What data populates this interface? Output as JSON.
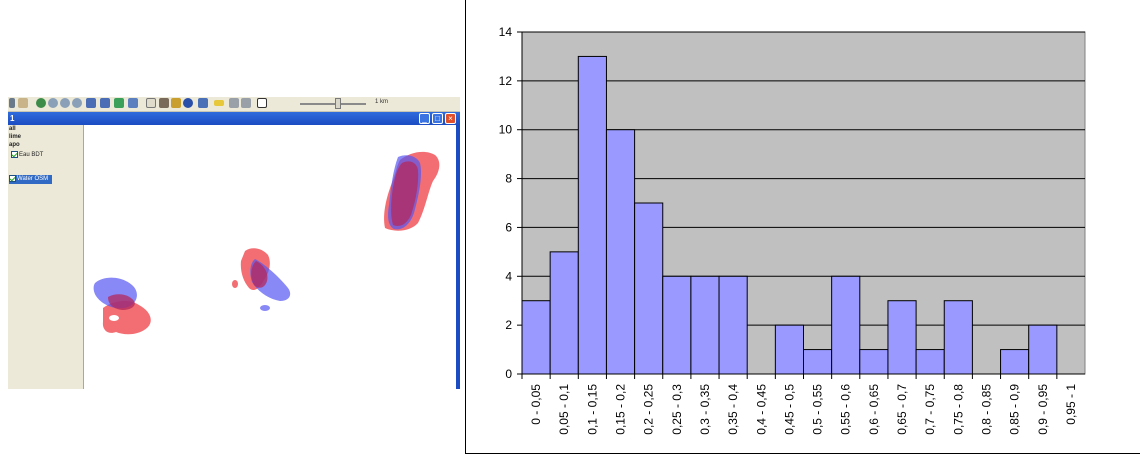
{
  "gis_window": {
    "scale_label": "1 km",
    "title": "1",
    "sidebar_labels": [
      "all",
      "lime",
      "apo"
    ],
    "layers": [
      {
        "label": "Eau BDT",
        "checked": true,
        "selected": false
      },
      {
        "label": "Water OSM",
        "checked": true,
        "selected": true
      }
    ],
    "colors": {
      "layer_eau_bdt": "#f0555b",
      "layer_water_osm": "#5656f2",
      "overlap": "#b3285c"
    },
    "toolbar_icons": [
      "select-icon",
      "pan-icon",
      "globe-icon",
      "zoom-in-icon",
      "zoom-out-icon",
      "zoom-extent-icon",
      "back-arrow-icon",
      "forward-arrow-icon",
      "layers-icon",
      "grid-icon",
      "pointer-icon",
      "tools-icon",
      "box-icon",
      "info-icon",
      "edit-icon",
      "ruler-icon",
      "undo-icon",
      "redo-icon",
      "frame-icon"
    ]
  },
  "chart_data": {
    "type": "bar",
    "categories": [
      "0 - 0,05",
      "0,05 - 0,1",
      "0,1 - 0,15",
      "0,15 - 0,2",
      "0,2 - 0,25",
      "0,25 - 0,3",
      "0,3 - 0,35",
      "0,35 - 0,4",
      "0,4 - 0,45",
      "0,45 - 0,5",
      "0,5 - 0,55",
      "0,55 - 0,6",
      "0,6 - 0,65",
      "0,65 - 0,7",
      "0,7 - 0,75",
      "0,75 - 0,8",
      "0,8 - 0,85",
      "0,85 - 0,9",
      "0,9 - 0,95",
      "0,95 - 1"
    ],
    "values": [
      3,
      5,
      13,
      10,
      7,
      4,
      4,
      4,
      0,
      2,
      1,
      4,
      1,
      3,
      1,
      3,
      0,
      1,
      2,
      0
    ],
    "yticks": [
      "0",
      "2",
      "4",
      "6",
      "8",
      "10",
      "12",
      "14"
    ],
    "ylim": [
      0,
      14
    ],
    "grid": true,
    "colors": {
      "bar_fill": "#9999ff",
      "bar_stroke": "#000000",
      "plot_bg": "#c0c0c0"
    }
  }
}
